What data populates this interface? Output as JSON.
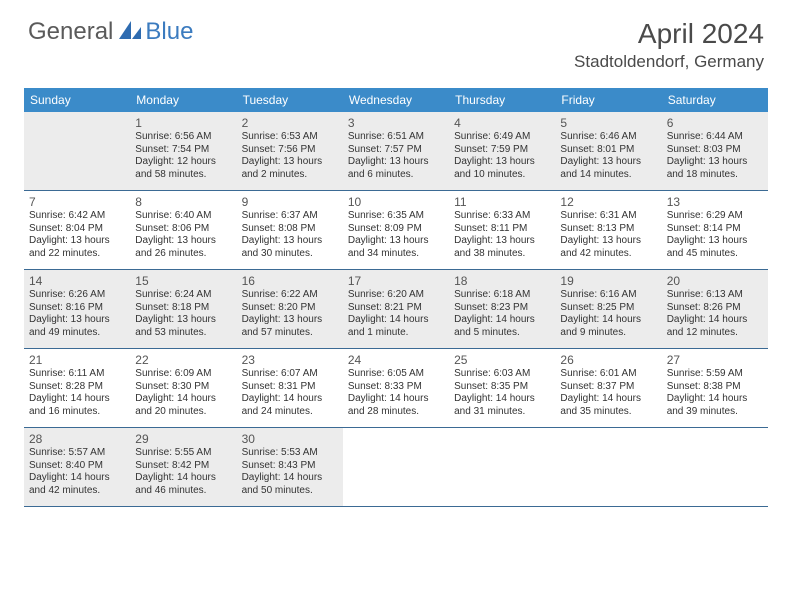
{
  "brand": {
    "part1": "General",
    "part2": "Blue"
  },
  "title": "April 2024",
  "location": "Stadtoldendorf, Germany",
  "colors": {
    "header_bg": "#3b8bc9",
    "header_text": "#ffffff",
    "row_border": "#3b6a94",
    "shaded_cell": "#ececec",
    "logo_accent": "#2e6bb0"
  },
  "day_names": [
    "Sunday",
    "Monday",
    "Tuesday",
    "Wednesday",
    "Thursday",
    "Friday",
    "Saturday"
  ],
  "weeks": [
    [
      {
        "day": "",
        "shaded": true
      },
      {
        "day": "1",
        "shaded": true,
        "sunrise": "Sunrise: 6:56 AM",
        "sunset": "Sunset: 7:54 PM",
        "dl1": "Daylight: 12 hours",
        "dl2": "and 58 minutes."
      },
      {
        "day": "2",
        "shaded": true,
        "sunrise": "Sunrise: 6:53 AM",
        "sunset": "Sunset: 7:56 PM",
        "dl1": "Daylight: 13 hours",
        "dl2": "and 2 minutes."
      },
      {
        "day": "3",
        "shaded": true,
        "sunrise": "Sunrise: 6:51 AM",
        "sunset": "Sunset: 7:57 PM",
        "dl1": "Daylight: 13 hours",
        "dl2": "and 6 minutes."
      },
      {
        "day": "4",
        "shaded": true,
        "sunrise": "Sunrise: 6:49 AM",
        "sunset": "Sunset: 7:59 PM",
        "dl1": "Daylight: 13 hours",
        "dl2": "and 10 minutes."
      },
      {
        "day": "5",
        "shaded": true,
        "sunrise": "Sunrise: 6:46 AM",
        "sunset": "Sunset: 8:01 PM",
        "dl1": "Daylight: 13 hours",
        "dl2": "and 14 minutes."
      },
      {
        "day": "6",
        "shaded": true,
        "sunrise": "Sunrise: 6:44 AM",
        "sunset": "Sunset: 8:03 PM",
        "dl1": "Daylight: 13 hours",
        "dl2": "and 18 minutes."
      }
    ],
    [
      {
        "day": "7",
        "sunrise": "Sunrise: 6:42 AM",
        "sunset": "Sunset: 8:04 PM",
        "dl1": "Daylight: 13 hours",
        "dl2": "and 22 minutes."
      },
      {
        "day": "8",
        "sunrise": "Sunrise: 6:40 AM",
        "sunset": "Sunset: 8:06 PM",
        "dl1": "Daylight: 13 hours",
        "dl2": "and 26 minutes."
      },
      {
        "day": "9",
        "sunrise": "Sunrise: 6:37 AM",
        "sunset": "Sunset: 8:08 PM",
        "dl1": "Daylight: 13 hours",
        "dl2": "and 30 minutes."
      },
      {
        "day": "10",
        "sunrise": "Sunrise: 6:35 AM",
        "sunset": "Sunset: 8:09 PM",
        "dl1": "Daylight: 13 hours",
        "dl2": "and 34 minutes."
      },
      {
        "day": "11",
        "sunrise": "Sunrise: 6:33 AM",
        "sunset": "Sunset: 8:11 PM",
        "dl1": "Daylight: 13 hours",
        "dl2": "and 38 minutes."
      },
      {
        "day": "12",
        "sunrise": "Sunrise: 6:31 AM",
        "sunset": "Sunset: 8:13 PM",
        "dl1": "Daylight: 13 hours",
        "dl2": "and 42 minutes."
      },
      {
        "day": "13",
        "sunrise": "Sunrise: 6:29 AM",
        "sunset": "Sunset: 8:14 PM",
        "dl1": "Daylight: 13 hours",
        "dl2": "and 45 minutes."
      }
    ],
    [
      {
        "day": "14",
        "shaded": true,
        "sunrise": "Sunrise: 6:26 AM",
        "sunset": "Sunset: 8:16 PM",
        "dl1": "Daylight: 13 hours",
        "dl2": "and 49 minutes."
      },
      {
        "day": "15",
        "shaded": true,
        "sunrise": "Sunrise: 6:24 AM",
        "sunset": "Sunset: 8:18 PM",
        "dl1": "Daylight: 13 hours",
        "dl2": "and 53 minutes."
      },
      {
        "day": "16",
        "shaded": true,
        "sunrise": "Sunrise: 6:22 AM",
        "sunset": "Sunset: 8:20 PM",
        "dl1": "Daylight: 13 hours",
        "dl2": "and 57 minutes."
      },
      {
        "day": "17",
        "shaded": true,
        "sunrise": "Sunrise: 6:20 AM",
        "sunset": "Sunset: 8:21 PM",
        "dl1": "Daylight: 14 hours",
        "dl2": "and 1 minute."
      },
      {
        "day": "18",
        "shaded": true,
        "sunrise": "Sunrise: 6:18 AM",
        "sunset": "Sunset: 8:23 PM",
        "dl1": "Daylight: 14 hours",
        "dl2": "and 5 minutes."
      },
      {
        "day": "19",
        "shaded": true,
        "sunrise": "Sunrise: 6:16 AM",
        "sunset": "Sunset: 8:25 PM",
        "dl1": "Daylight: 14 hours",
        "dl2": "and 9 minutes."
      },
      {
        "day": "20",
        "shaded": true,
        "sunrise": "Sunrise: 6:13 AM",
        "sunset": "Sunset: 8:26 PM",
        "dl1": "Daylight: 14 hours",
        "dl2": "and 12 minutes."
      }
    ],
    [
      {
        "day": "21",
        "sunrise": "Sunrise: 6:11 AM",
        "sunset": "Sunset: 8:28 PM",
        "dl1": "Daylight: 14 hours",
        "dl2": "and 16 minutes."
      },
      {
        "day": "22",
        "sunrise": "Sunrise: 6:09 AM",
        "sunset": "Sunset: 8:30 PM",
        "dl1": "Daylight: 14 hours",
        "dl2": "and 20 minutes."
      },
      {
        "day": "23",
        "sunrise": "Sunrise: 6:07 AM",
        "sunset": "Sunset: 8:31 PM",
        "dl1": "Daylight: 14 hours",
        "dl2": "and 24 minutes."
      },
      {
        "day": "24",
        "sunrise": "Sunrise: 6:05 AM",
        "sunset": "Sunset: 8:33 PM",
        "dl1": "Daylight: 14 hours",
        "dl2": "and 28 minutes."
      },
      {
        "day": "25",
        "sunrise": "Sunrise: 6:03 AM",
        "sunset": "Sunset: 8:35 PM",
        "dl1": "Daylight: 14 hours",
        "dl2": "and 31 minutes."
      },
      {
        "day": "26",
        "sunrise": "Sunrise: 6:01 AM",
        "sunset": "Sunset: 8:37 PM",
        "dl1": "Daylight: 14 hours",
        "dl2": "and 35 minutes."
      },
      {
        "day": "27",
        "sunrise": "Sunrise: 5:59 AM",
        "sunset": "Sunset: 8:38 PM",
        "dl1": "Daylight: 14 hours",
        "dl2": "and 39 minutes."
      }
    ],
    [
      {
        "day": "28",
        "shaded": true,
        "sunrise": "Sunrise: 5:57 AM",
        "sunset": "Sunset: 8:40 PM",
        "dl1": "Daylight: 14 hours",
        "dl2": "and 42 minutes."
      },
      {
        "day": "29",
        "shaded": true,
        "sunrise": "Sunrise: 5:55 AM",
        "sunset": "Sunset: 8:42 PM",
        "dl1": "Daylight: 14 hours",
        "dl2": "and 46 minutes."
      },
      {
        "day": "30",
        "shaded": true,
        "sunrise": "Sunrise: 5:53 AM",
        "sunset": "Sunset: 8:43 PM",
        "dl1": "Daylight: 14 hours",
        "dl2": "and 50 minutes."
      },
      {
        "day": ""
      },
      {
        "day": ""
      },
      {
        "day": ""
      },
      {
        "day": ""
      }
    ]
  ]
}
